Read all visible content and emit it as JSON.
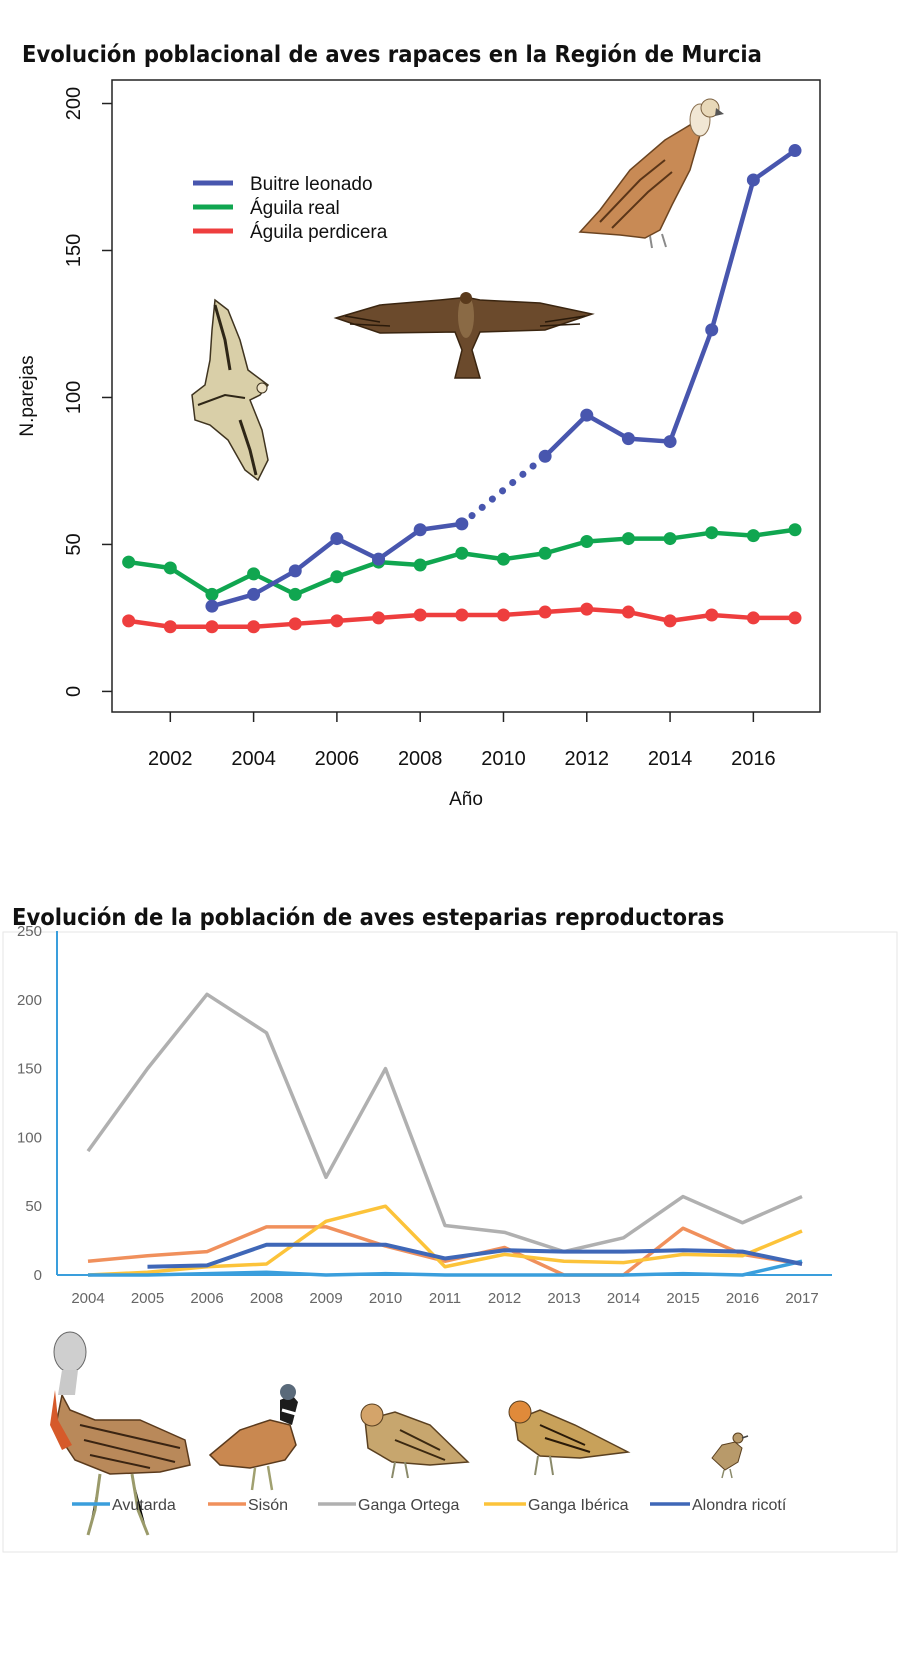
{
  "chart_data": [
    {
      "type": "line",
      "title": "Evolución poblacional de aves rapaces en la Región de Murcia",
      "xlabel": "Año",
      "ylabel": "N.parejas",
      "xlim": [
        2000.6,
        2017.6
      ],
      "ylim": [
        -7,
        208
      ],
      "xticks": [
        "2002",
        "2004",
        "2006",
        "2008",
        "2010",
        "2012",
        "2014",
        "2016"
      ],
      "yticks": [
        "0",
        "50",
        "100",
        "150",
        "200"
      ],
      "legend_position": "top-left",
      "series": [
        {
          "name": "Buitre leonado",
          "color": "#4856ae",
          "x": [
            2003,
            2004,
            2005,
            2006,
            2007,
            2008,
            2009,
            2011,
            2012,
            2013,
            2014,
            2015,
            2016,
            2017
          ],
          "values": [
            29,
            33,
            41,
            52,
            45,
            55,
            57,
            80,
            94,
            86,
            85,
            123,
            174,
            184
          ],
          "dotted_gap": [
            2009,
            2011
          ]
        },
        {
          "name": "Águila real",
          "color": "#10a650",
          "x": [
            2001,
            2002,
            2003,
            2004,
            2005,
            2006,
            2007,
            2008,
            2009,
            2010,
            2011,
            2012,
            2013,
            2014,
            2015,
            2016,
            2017
          ],
          "values": [
            44,
            42,
            33,
            40,
            33,
            39,
            44,
            43,
            47,
            45,
            47,
            51,
            52,
            52,
            54,
            53,
            55
          ]
        },
        {
          "name": "Águila perdicera",
          "color": "#ee3e3e",
          "x": [
            2001,
            2002,
            2003,
            2004,
            2005,
            2006,
            2007,
            2008,
            2009,
            2010,
            2011,
            2012,
            2013,
            2014,
            2015,
            2016,
            2017
          ],
          "values": [
            24,
            22,
            22,
            22,
            23,
            24,
            25,
            26,
            26,
            26,
            27,
            28,
            27,
            24,
            26,
            25,
            25
          ]
        }
      ]
    },
    {
      "type": "line",
      "title": "Evolución de la población de aves esteparias reproductoras",
      "categories": [
        "2004",
        "2005",
        "2006",
        "2008",
        "2009",
        "2010",
        "2011",
        "2012",
        "2013",
        "2014",
        "2015",
        "2016",
        "2017"
      ],
      "ylim": [
        0,
        250
      ],
      "yticks": [
        "0",
        "50",
        "100",
        "150",
        "200",
        "250"
      ],
      "legend_position": "bottom",
      "series": [
        {
          "name": "Avutarda",
          "color": "#3a9edc",
          "values": [
            0,
            0,
            1,
            2,
            0,
            1,
            0,
            0,
            0,
            0,
            1,
            0,
            10
          ]
        },
        {
          "name": "Sisón",
          "color": "#f0905c",
          "values": [
            10,
            14,
            17,
            35,
            35,
            21,
            10,
            20,
            0,
            0,
            34,
            15,
            8
          ]
        },
        {
          "name": "Ganga Ortega",
          "color": "#b0b0b0",
          "values": [
            90,
            150,
            204,
            176,
            71,
            150,
            36,
            31,
            17,
            27,
            57,
            38,
            57
          ]
        },
        {
          "name": "Ganga Ibérica",
          "color": "#fcc33a",
          "values": [
            0,
            2,
            6,
            8,
            39,
            50,
            6,
            15,
            10,
            9,
            15,
            14,
            32
          ]
        },
        {
          "name": "Alondra ricotí",
          "color": "#3f67b7",
          "values": [
            null,
            6,
            7,
            22,
            22,
            22,
            12,
            18,
            17,
            17,
            18,
            17,
            8
          ]
        }
      ]
    }
  ]
}
